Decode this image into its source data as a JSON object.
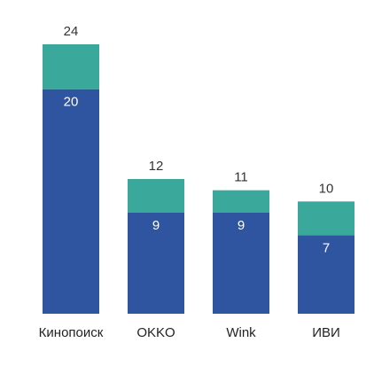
{
  "chart_data": {
    "type": "bar",
    "stacked": true,
    "categories": [
      "Кинопоиск",
      "OKKO",
      "Wink",
      "ИВИ"
    ],
    "totals": [
      24,
      12,
      11,
      10
    ],
    "series": [
      {
        "values": [
          20,
          9,
          9,
          7
        ],
        "color": "#2f55a0",
        "show_labels": true
      },
      {
        "values": [
          4,
          3,
          2,
          3
        ],
        "color": "#3aa89a",
        "show_labels": false
      }
    ],
    "ylim": [
      0,
      25
    ],
    "grid": false,
    "legend": "none",
    "title": "",
    "xlabel": "",
    "ylabel": ""
  }
}
